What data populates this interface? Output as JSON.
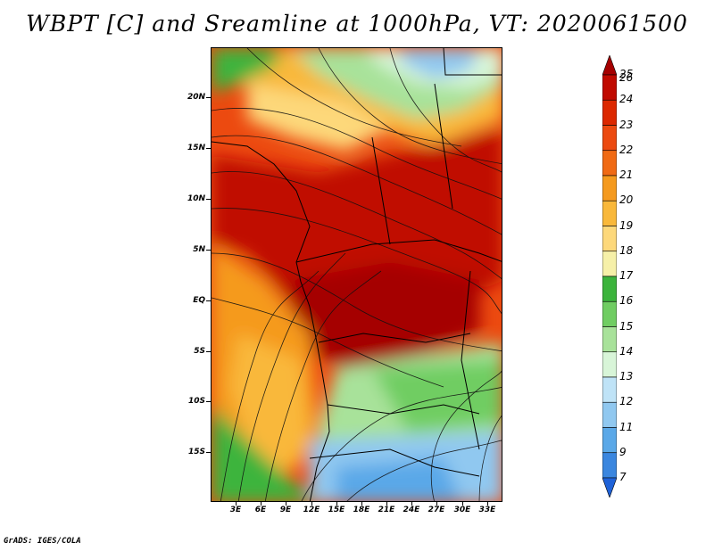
{
  "title": "WBPT [C] and Sreamline at 1000hPa, VT: 2020061500",
  "credit": "GrADS: IGES/COLA",
  "map": {
    "lat_labels": [
      "20N",
      "15N",
      "10N",
      "5N",
      "EQ",
      "5S",
      "10S",
      "15S"
    ],
    "lon_labels": [
      "3E",
      "6E",
      "9E",
      "12E",
      "15E",
      "18E",
      "21E",
      "24E",
      "27E",
      "30E",
      "33E"
    ],
    "lat_range": [
      -20,
      24
    ],
    "lon_range": [
      0,
      35
    ]
  },
  "colorbar": {
    "labels": [
      "26",
      "25",
      "24",
      "23",
      "22",
      "21",
      "20",
      "19",
      "18",
      "17",
      "16",
      "15",
      "14",
      "13",
      "12",
      "11",
      "9",
      "7"
    ],
    "colors": [
      "#a50000",
      "#c00a00",
      "#dc2800",
      "#ec4a10",
      "#f06a14",
      "#f59a1e",
      "#f9b83a",
      "#fdd87a",
      "#f6f0a8",
      "#3cb43c",
      "#70cd62",
      "#a8e29a",
      "#d8f5d8",
      "#bfe3f7",
      "#90c8f0",
      "#5aa8e8",
      "#3a86df",
      "#1f62d8"
    ]
  }
}
